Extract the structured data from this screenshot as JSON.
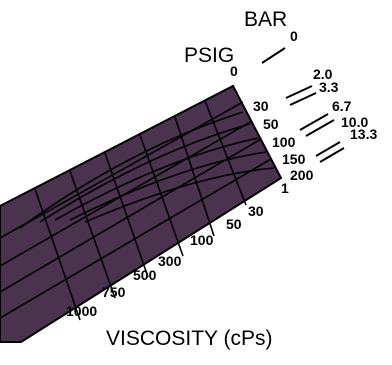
{
  "chart_data": {
    "type": "surface",
    "title": "",
    "axes": {
      "pressure": {
        "label": "PSIG",
        "ticks": [
          "0",
          "30",
          "50",
          "100",
          "150",
          "200"
        ]
      },
      "bar": {
        "label": "BAR",
        "ticks": [
          "0",
          "2.0",
          "3.3",
          "6.7",
          "10.0",
          "13.3"
        ]
      },
      "viscosity": {
        "label": "VISCOSITY  (cPs)",
        "ticks": [
          "1",
          "30",
          "50",
          "100",
          "300",
          "500",
          "750",
          "1000"
        ]
      }
    },
    "surface_color": "#4b3350",
    "line_color": "#000000",
    "grid": true
  }
}
